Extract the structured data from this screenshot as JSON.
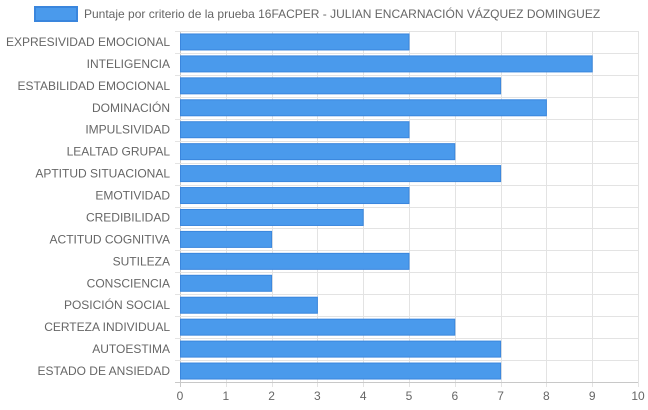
{
  "chart_data": {
    "type": "bar",
    "orientation": "horizontal",
    "categories": [
      "EXPRESIVIDAD EMOCIONAL",
      "INTELIGENCIA",
      "ESTABILIDAD EMOCIONAL",
      "DOMINACIÓN",
      "IMPULSIVIDAD",
      "LEALTAD GRUPAL",
      "APTITUD SITUACIONAL",
      "EMOTIVIDAD",
      "CREDIBILIDAD",
      "ACTITUD COGNITIVA",
      "SUTILEZA",
      "CONSCIENCIA",
      "POSICIÓN SOCIAL",
      "CERTEZA INDIVIDUAL",
      "AUTOESTIMA",
      "ESTADO DE ANSIEDAD"
    ],
    "series": [
      {
        "name": "Puntaje por criterio de la prueba 16FACPER - JULIAN ENCARNACIÓN VÁZQUEZ DOMINGUEZ",
        "values": [
          5,
          9,
          7,
          8,
          5,
          6,
          7,
          5,
          4,
          2,
          5,
          2,
          3,
          6,
          7,
          7
        ],
        "color": "#4a9aec",
        "border_color": "#3a86dd"
      }
    ],
    "xlim": [
      0,
      10
    ],
    "x_ticks": [
      "0",
      "1",
      "2",
      "3",
      "4",
      "5",
      "6",
      "7",
      "8",
      "9",
      "10"
    ],
    "grid": true,
    "grid_color": "#e3e3e3",
    "legend_position": "top"
  }
}
